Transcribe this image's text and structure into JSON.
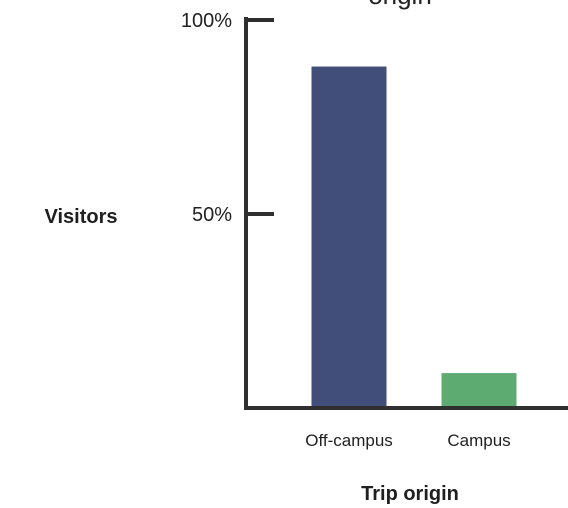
{
  "chart_data": {
    "type": "bar",
    "title": "origin",
    "xlabel": "Trip origin",
    "ylabel": "Visitors",
    "categories": [
      "Off-campus",
      "Campus"
    ],
    "values": [
      88,
      9
    ],
    "colors": [
      "#404e79",
      "#5dab71"
    ],
    "ylim": [
      0,
      100
    ],
    "yticks": [
      {
        "value": 100,
        "label": "100%"
      },
      {
        "value": 50,
        "label": "50%"
      }
    ],
    "grid": false,
    "legend": "none",
    "axis_color": "#2f2f2f"
  }
}
